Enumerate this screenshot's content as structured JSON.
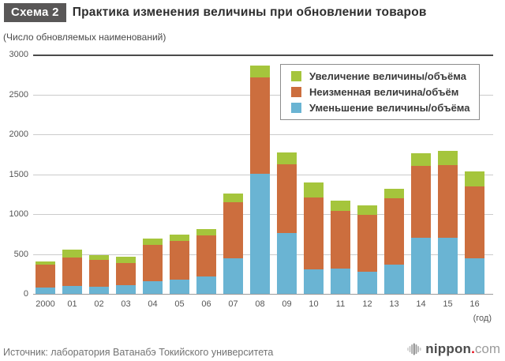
{
  "header": {
    "badge": "Схема 2",
    "title": "Практика изменения величины при обновлении товаров",
    "subtitle": "(Число обновляемых наименований)"
  },
  "chart_data": {
    "type": "bar",
    "stacked": true,
    "title": "Практика изменения величины при обновлении товаров",
    "ylabel": "(Число обновляемых наименований)",
    "x_axis_unit": "(год)",
    "ylim": [
      0,
      3000
    ],
    "yticks": [
      0,
      500,
      1000,
      1500,
      2000,
      2500,
      3000
    ],
    "grid": true,
    "legend_position": "top-right",
    "categories": [
      "2000",
      "01",
      "02",
      "03",
      "04",
      "05",
      "06",
      "07",
      "08",
      "09",
      "10",
      "11",
      "12",
      "13",
      "14",
      "15",
      "16"
    ],
    "series": [
      {
        "name": "Уменьшение величины/объёма",
        "color": "#6ab4d3",
        "values": [
          80,
          95,
          85,
          105,
          155,
          175,
          220,
          450,
          1505,
          760,
          305,
          315,
          280,
          370,
          700,
          700,
          445
        ]
      },
      {
        "name": "Неизменная величина/объём",
        "color": "#cc6e3e",
        "values": [
          290,
          365,
          340,
          285,
          460,
          490,
          515,
          700,
          1205,
          865,
          900,
          725,
          715,
          825,
          900,
          915,
          905
        ]
      },
      {
        "name": "Увеличение величины/объёма",
        "color": "#a5c53c",
        "values": [
          35,
          90,
          60,
          75,
          75,
          80,
          80,
          110,
          150,
          150,
          195,
          130,
          110,
          120,
          165,
          175,
          185
        ]
      }
    ],
    "totals": [
      405,
      550,
      485,
      465,
      690,
      745,
      815,
      1260,
      2860,
      1775,
      1400,
      1170,
      1105,
      1315,
      1765,
      1790,
      1535
    ]
  },
  "footer": {
    "source": "Источник: лаборатория Ватанабэ Токийского университета",
    "logo": {
      "name": "nippon",
      "dot": ".",
      "tld": "com"
    }
  }
}
